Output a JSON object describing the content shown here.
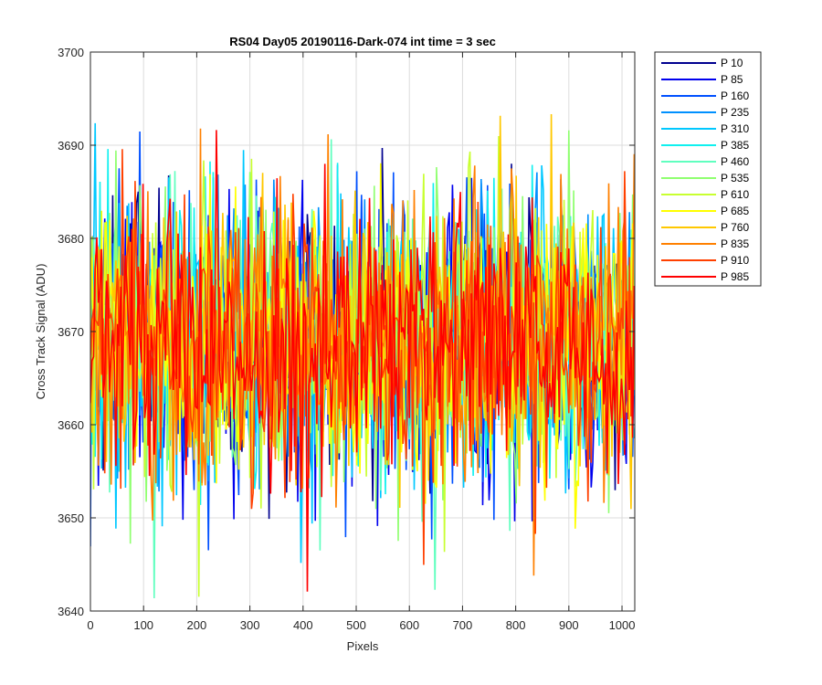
{
  "chart_data": {
    "type": "line",
    "title": "RS04 Day05 20190116-Dark-074 int time = 3 sec",
    "xlabel": "Pixels",
    "ylabel": "Cross Track Signal (ADU)",
    "xlim": [
      0,
      1024
    ],
    "ylim": [
      3640,
      3700
    ],
    "xticks": [
      0,
      100,
      200,
      300,
      400,
      500,
      600,
      700,
      800,
      900,
      1000
    ],
    "yticks": [
      3640,
      3650,
      3660,
      3670,
      3680,
      3690,
      3700
    ],
    "grid": true,
    "legend_position": "outside-right-top",
    "signal_mean": 3669,
    "signal_min": 3641,
    "signal_max": 3696,
    "series": [
      {
        "name": "P 10",
        "color": "#00008f"
      },
      {
        "name": "P 85",
        "color": "#0000ee"
      },
      {
        "name": "P 160",
        "color": "#0050ff"
      },
      {
        "name": "P 235",
        "color": "#0090ff"
      },
      {
        "name": "P 310",
        "color": "#00c8ff"
      },
      {
        "name": "P 385",
        "color": "#10f0ef"
      },
      {
        "name": "P 460",
        "color": "#60ffbf"
      },
      {
        "name": "P 535",
        "color": "#90ff70"
      },
      {
        "name": "P 610",
        "color": "#c8ff30"
      },
      {
        "name": "P 685",
        "color": "#ffff00"
      },
      {
        "name": "P 760",
        "color": "#ffc800"
      },
      {
        "name": "P 835",
        "color": "#ff8000"
      },
      {
        "name": "P 910",
        "color": "#ff4000"
      },
      {
        "name": "P 985",
        "color": "#ff0000"
      }
    ]
  }
}
